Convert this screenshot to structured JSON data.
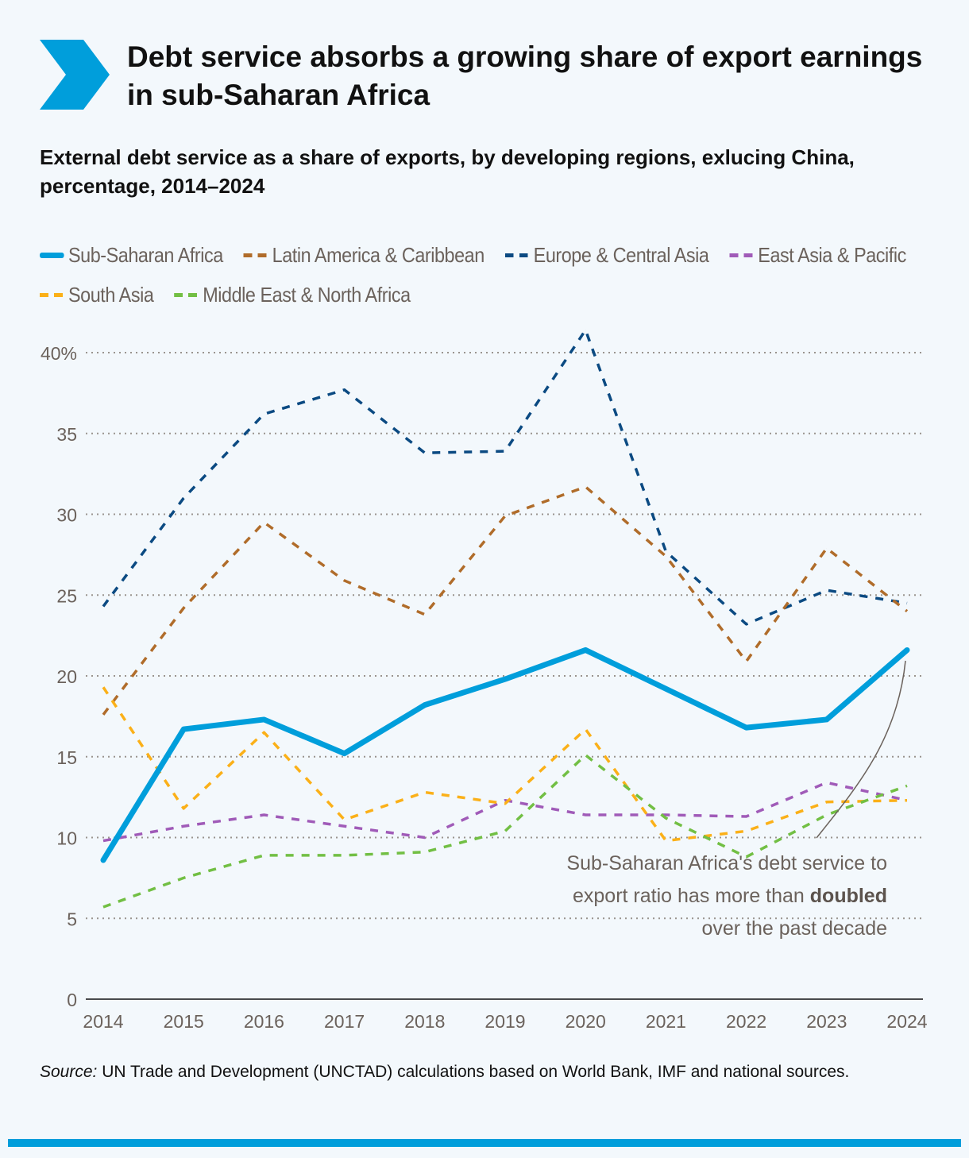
{
  "title": "Debt service absorbs a growing share of export earnings in sub-Saharan Africa",
  "subtitle": "External debt service as a share of exports, by developing regions, exlucing China, percentage, 2014–2024",
  "source_label": "Source:",
  "source_text": " UN Trade and Development (UNCTAD) calculations based on World Bank, IMF and national sources.",
  "annotation": {
    "line1": "Sub-Saharan Africa's debt service to",
    "line2_pre": "export ratio has more than ",
    "line2_bold": "doubled",
    "line3": "over the past decade"
  },
  "colors": {
    "background": "#f3f8fc",
    "accent": "#009edb"
  },
  "chart_data": {
    "type": "line",
    "x": [
      "2014",
      "2015",
      "2016",
      "2017",
      "2018",
      "2019",
      "2020",
      "2021",
      "2022",
      "2023",
      "2024"
    ],
    "ylim": [
      0,
      40
    ],
    "yticks": [
      0,
      5,
      10,
      15,
      20,
      25,
      30,
      35,
      40
    ],
    "ytick_labels": [
      "0",
      "5",
      "10",
      "15",
      "20",
      "25",
      "30",
      "35",
      "40%"
    ],
    "grid": true,
    "legend_position": "top",
    "series": [
      {
        "name": "Sub-Saharan Africa",
        "color": "#009edb",
        "style": "solid",
        "values": [
          8.6,
          16.7,
          17.3,
          15.2,
          18.2,
          19.8,
          21.6,
          19.2,
          16.8,
          17.3,
          21.6
        ]
      },
      {
        "name": "Latin America & Caribbean",
        "color": "#b06c2a",
        "style": "dashed",
        "values": [
          17.6,
          24.2,
          29.5,
          25.9,
          23.8,
          29.9,
          31.7,
          27.4,
          20.9,
          27.9,
          24.0
        ]
      },
      {
        "name": "Europe & Central Asia",
        "color": "#0b4a82",
        "style": "dashed",
        "values": [
          24.3,
          31.0,
          36.2,
          37.7,
          33.8,
          33.9,
          41.4,
          27.7,
          23.2,
          25.3,
          24.5
        ]
      },
      {
        "name": "East Asia & Pacific",
        "color": "#a05bb8",
        "style": "dashed",
        "values": [
          9.8,
          10.7,
          11.4,
          10.7,
          10.0,
          12.3,
          11.4,
          11.4,
          11.3,
          13.4,
          12.3
        ]
      },
      {
        "name": "South Asia",
        "color": "#fbb018",
        "style": "dashed",
        "values": [
          19.3,
          11.8,
          16.5,
          11.1,
          12.8,
          12.1,
          16.7,
          9.8,
          10.4,
          12.2,
          12.3
        ]
      },
      {
        "name": "Middle East & North Africa",
        "color": "#72bf44",
        "style": "dashed",
        "values": [
          5.7,
          7.5,
          8.9,
          8.9,
          9.1,
          10.4,
          15.1,
          11.2,
          8.8,
          11.4,
          13.2
        ]
      }
    ]
  }
}
